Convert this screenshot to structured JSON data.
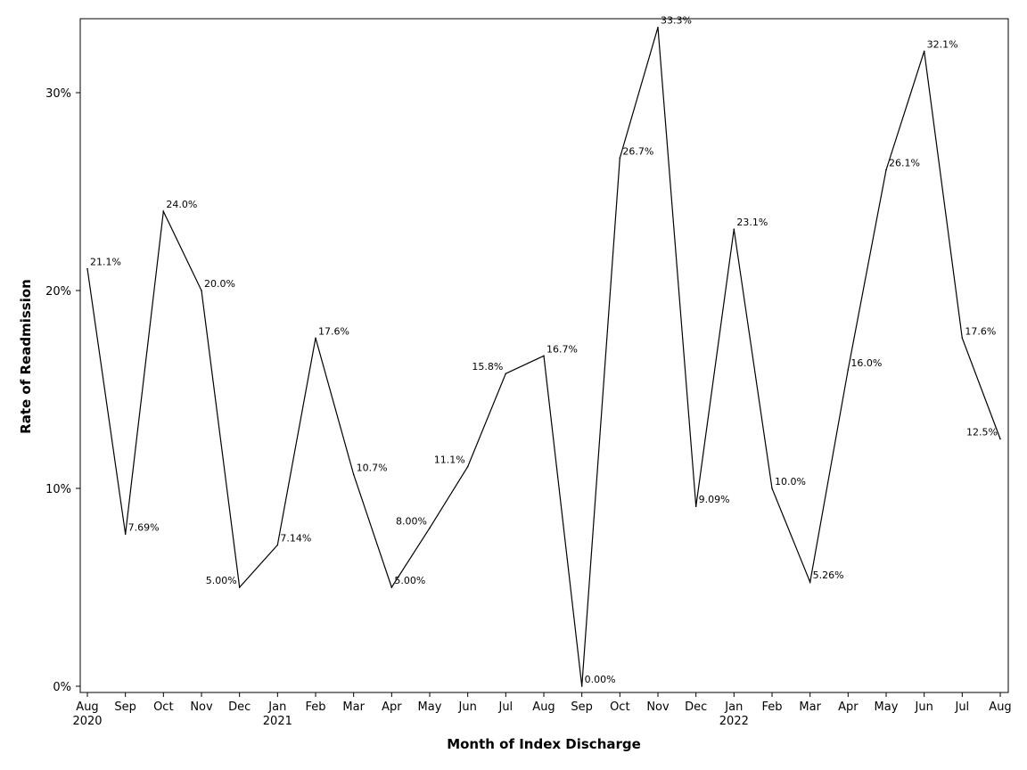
{
  "chart_data": {
    "type": "line",
    "xlabel": "Month of Index Discharge",
    "ylabel": "Rate of Readmission",
    "ylim": [
      0,
      0.3333
    ],
    "yticks": [
      {
        "value": 0,
        "label": "0%"
      },
      {
        "value": 0.1,
        "label": "10%"
      },
      {
        "value": 0.2,
        "label": "20%"
      },
      {
        "value": 0.3,
        "label": "30%"
      }
    ],
    "grid": false,
    "categories": [
      {
        "month": "Aug",
        "year": "2020"
      },
      {
        "month": "Sep",
        "year": ""
      },
      {
        "month": "Oct",
        "year": ""
      },
      {
        "month": "Nov",
        "year": ""
      },
      {
        "month": "Dec",
        "year": ""
      },
      {
        "month": "Jan",
        "year": "2021"
      },
      {
        "month": "Feb",
        "year": ""
      },
      {
        "month": "Mar",
        "year": ""
      },
      {
        "month": "Apr",
        "year": ""
      },
      {
        "month": "May",
        "year": ""
      },
      {
        "month": "Jun",
        "year": ""
      },
      {
        "month": "Jul",
        "year": ""
      },
      {
        "month": "Aug",
        "year": ""
      },
      {
        "month": "Sep",
        "year": ""
      },
      {
        "month": "Oct",
        "year": ""
      },
      {
        "month": "Nov",
        "year": ""
      },
      {
        "month": "Dec",
        "year": ""
      },
      {
        "month": "Jan",
        "year": "2022"
      },
      {
        "month": "Feb",
        "year": ""
      },
      {
        "month": "Mar",
        "year": ""
      },
      {
        "month": "Apr",
        "year": ""
      },
      {
        "month": "May",
        "year": ""
      },
      {
        "month": "Jun",
        "year": ""
      },
      {
        "month": "Jul",
        "year": ""
      },
      {
        "month": "Aug",
        "year": ""
      }
    ],
    "series": [
      {
        "values": [
          0.211,
          0.0769,
          0.24,
          0.2,
          0.05,
          0.0714,
          0.176,
          0.107,
          0.05,
          0.08,
          0.111,
          0.158,
          0.167,
          0.0,
          0.267,
          0.333,
          0.0909,
          0.231,
          0.1,
          0.0526,
          0.16,
          0.261,
          0.321,
          0.176,
          0.125
        ],
        "labels": [
          "21.1%",
          "7.69%",
          "24.0%",
          "20.0%",
          "5.00%",
          "7.14%",
          "17.6%",
          "10.7%",
          "5.00%",
          "8.00%",
          "11.1%",
          "15.8%",
          "16.7%",
          "0.00%",
          "26.7%",
          "33.3%",
          "9.09%",
          "23.1%",
          "10.0%",
          "5.26%",
          "16.0%",
          "26.1%",
          "32.1%",
          "17.6%",
          "12.5%"
        ],
        "label_side": [
          "right",
          "right",
          "right",
          "right",
          "left",
          "right",
          "right",
          "right",
          "right",
          "left",
          "left",
          "left",
          "right",
          "right",
          "right",
          "right",
          "right",
          "right",
          "right",
          "right",
          "right",
          "right",
          "right",
          "right",
          "left"
        ],
        "color": "#000000"
      }
    ]
  }
}
